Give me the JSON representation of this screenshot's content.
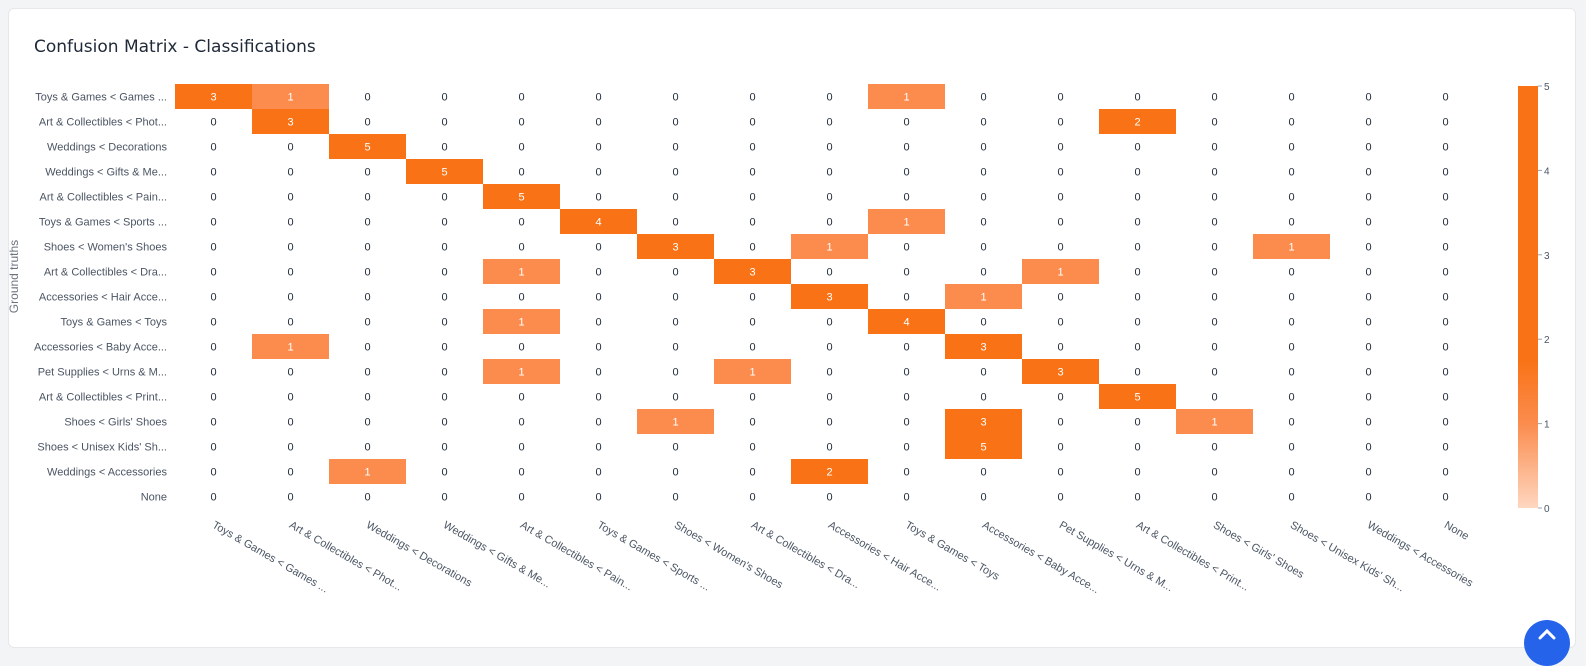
{
  "chart_data": {
    "type": "heatmap",
    "title": "Confusion Matrix - Classifications",
    "ylabel": "Ground truths",
    "xlabel": "",
    "row_labels": [
      "Toys & Games < Games ...",
      "Art & Collectibles < Phot...",
      "Weddings < Decorations",
      "Weddings < Gifts & Me...",
      "Art & Collectibles < Pain...",
      "Toys & Games < Sports ...",
      "Shoes < Women's Shoes",
      "Art & Collectibles < Dra...",
      "Accessories < Hair Acce...",
      "Toys & Games < Toys",
      "Accessories < Baby Acce...",
      "Pet Supplies < Urns & M...",
      "Art & Collectibles < Print...",
      "Shoes < Girls' Shoes",
      "Shoes < Unisex Kids' Sh...",
      "Weddings < Accessories",
      "None"
    ],
    "col_labels": [
      "Toys & Games < Games ...",
      "Art & Collectibles < Phot...",
      "Weddings < Decorations",
      "Weddings < Gifts & Me...",
      "Art & Collectibles < Pain...",
      "Toys & Games < Sports ...",
      "Shoes < Women's Shoes",
      "Art & Collectibles < Dra...",
      "Accessories < Hair Acce...",
      "Toys & Games < Toys",
      "Accessories < Baby Acce...",
      "Pet Supplies < Urns & M...",
      "Art & Collectibles < Print...",
      "Shoes < Girls' Shoes",
      "Shoes < Unisex Kids' Sh...",
      "Weddings < Accessories",
      "None"
    ],
    "values": [
      [
        3,
        1,
        0,
        0,
        0,
        0,
        0,
        0,
        0,
        1,
        0,
        0,
        0,
        0,
        0,
        0,
        0
      ],
      [
        0,
        3,
        0,
        0,
        0,
        0,
        0,
        0,
        0,
        0,
        0,
        0,
        2,
        0,
        0,
        0,
        0
      ],
      [
        0,
        0,
        5,
        0,
        0,
        0,
        0,
        0,
        0,
        0,
        0,
        0,
        0,
        0,
        0,
        0,
        0
      ],
      [
        0,
        0,
        0,
        5,
        0,
        0,
        0,
        0,
        0,
        0,
        0,
        0,
        0,
        0,
        0,
        0,
        0
      ],
      [
        0,
        0,
        0,
        0,
        5,
        0,
        0,
        0,
        0,
        0,
        0,
        0,
        0,
        0,
        0,
        0,
        0
      ],
      [
        0,
        0,
        0,
        0,
        0,
        4,
        0,
        0,
        0,
        1,
        0,
        0,
        0,
        0,
        0,
        0,
        0
      ],
      [
        0,
        0,
        0,
        0,
        0,
        0,
        3,
        0,
        1,
        0,
        0,
        0,
        0,
        0,
        1,
        0,
        0
      ],
      [
        0,
        0,
        0,
        0,
        1,
        0,
        0,
        3,
        0,
        0,
        0,
        1,
        0,
        0,
        0,
        0,
        0
      ],
      [
        0,
        0,
        0,
        0,
        0,
        0,
        0,
        0,
        3,
        0,
        1,
        0,
        0,
        0,
        0,
        0,
        0
      ],
      [
        0,
        0,
        0,
        0,
        1,
        0,
        0,
        0,
        0,
        4,
        0,
        0,
        0,
        0,
        0,
        0,
        0
      ],
      [
        0,
        1,
        0,
        0,
        0,
        0,
        0,
        0,
        0,
        0,
        3,
        0,
        0,
        0,
        0,
        0,
        0
      ],
      [
        0,
        0,
        0,
        0,
        1,
        0,
        0,
        1,
        0,
        0,
        0,
        3,
        0,
        0,
        0,
        0,
        0
      ],
      [
        0,
        0,
        0,
        0,
        0,
        0,
        0,
        0,
        0,
        0,
        0,
        0,
        5,
        0,
        0,
        0,
        0
      ],
      [
        0,
        0,
        0,
        0,
        0,
        0,
        1,
        0,
        0,
        0,
        3,
        0,
        0,
        1,
        0,
        0,
        0
      ],
      [
        0,
        0,
        0,
        0,
        0,
        0,
        0,
        0,
        0,
        0,
        5,
        0,
        0,
        0,
        0,
        0,
        0
      ],
      [
        0,
        0,
        1,
        0,
        0,
        0,
        0,
        0,
        2,
        0,
        0,
        0,
        0,
        0,
        0,
        0,
        0
      ],
      [
        0,
        0,
        0,
        0,
        0,
        0,
        0,
        0,
        0,
        0,
        0,
        0,
        0,
        0,
        0,
        0,
        0
      ]
    ],
    "zlim": [
      0,
      5
    ],
    "colorbar_ticks": [
      "0",
      "1",
      "2",
      "3",
      "4",
      "5"
    ],
    "colors": {
      "strong": "#f97316",
      "weak": "#fb8c4e",
      "min": "#fed7c0",
      "zero_cell": "#ffffff",
      "tick_text": "#4b5563"
    },
    "grid": false,
    "legend": "colorbar-right"
  },
  "page": {
    "title": "Confusion Matrix - Classifications"
  }
}
